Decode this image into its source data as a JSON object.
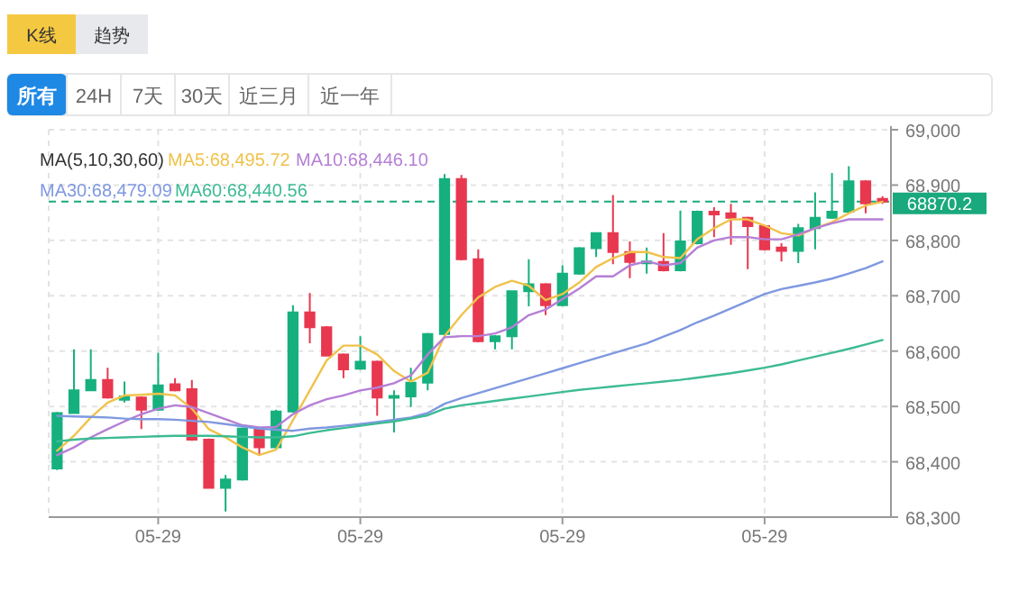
{
  "chart_data": {
    "type": "candlestick",
    "categories": [
      null,
      null,
      null,
      null,
      null,
      null,
      "05-29",
      null,
      null,
      null,
      null,
      null,
      null,
      null,
      null,
      null,
      null,
      null,
      "05-29",
      null,
      null,
      null,
      null,
      null,
      null,
      null,
      null,
      null,
      null,
      null,
      "05-29",
      null,
      null,
      null,
      null,
      null,
      null,
      null,
      null,
      null,
      null,
      null,
      "05-29",
      null,
      null,
      null,
      null,
      null,
      null,
      null
    ],
    "ohlc": [
      [
        68388,
        68490,
        68385,
        68488
      ],
      [
        68488,
        68603,
        68488,
        68529
      ],
      [
        68529,
        68603,
        68528,
        68548
      ],
      [
        68548,
        68570,
        68514,
        68516
      ],
      [
        68512,
        68545,
        68507,
        68518
      ],
      [
        68516,
        68518,
        68459,
        68494
      ],
      [
        68494,
        68597,
        68492,
        68538
      ],
      [
        68540,
        68551,
        68527,
        68529
      ],
      [
        68531,
        68548,
        68438,
        68440
      ],
      [
        68440,
        68442,
        68352,
        68353
      ],
      [
        68353,
        68376,
        68310,
        68368
      ],
      [
        68368,
        68462,
        68366,
        68460
      ],
      [
        68459,
        68462,
        68412,
        68426
      ],
      [
        68426,
        68494,
        68424,
        68491
      ],
      [
        68491,
        68683,
        68489,
        68670
      ],
      [
        68670,
        68705,
        68614,
        68643
      ],
      [
        68643,
        68645,
        68590,
        68592
      ],
      [
        68594,
        68596,
        68551,
        68567
      ],
      [
        68568,
        68627,
        68566,
        68581
      ],
      [
        68581,
        68583,
        68483,
        68516
      ],
      [
        68517,
        68529,
        68453,
        68519
      ],
      [
        68518,
        68570,
        68499,
        68543
      ],
      [
        68543,
        68633,
        68529,
        68631
      ],
      [
        68631,
        68920,
        68629,
        68911
      ],
      [
        68911,
        68918,
        68764,
        68766
      ],
      [
        68766,
        68784,
        68616,
        68618
      ],
      [
        68618,
        68629,
        68603,
        68627
      ],
      [
        68627,
        68710,
        68603,
        68708
      ],
      [
        68708,
        68766,
        68681,
        68721
      ],
      [
        68721,
        68723,
        68665,
        68683
      ],
      [
        68683,
        68755,
        68681,
        68740
      ],
      [
        68740,
        68788,
        68738,
        68786
      ],
      [
        68786,
        68815,
        68770,
        68813
      ],
      [
        68813,
        68882,
        68757,
        68779
      ],
      [
        68779,
        68798,
        68732,
        68761
      ],
      [
        68760,
        68787,
        68740,
        68762
      ],
      [
        68761,
        68813,
        68744,
        68746
      ],
      [
        68746,
        68854,
        68744,
        68798
      ],
      [
        68795,
        68854,
        68793,
        68852
      ],
      [
        68852,
        68860,
        68806,
        68847
      ],
      [
        68849,
        68866,
        68792,
        68841
      ],
      [
        68841,
        68843,
        68748,
        68826
      ],
      [
        68826,
        68828,
        68782,
        68784
      ],
      [
        68787,
        68795,
        68762,
        68781
      ],
      [
        68781,
        68830,
        68759,
        68822
      ],
      [
        68822,
        68887,
        68784,
        68841
      ],
      [
        68841,
        68922,
        68839,
        68852
      ],
      [
        68852,
        68934,
        68850,
        68907
      ],
      [
        68907,
        68909,
        68849,
        68867
      ],
      [
        68875,
        68880,
        68866,
        68870.2
      ]
    ],
    "colors": [
      "#16b07e",
      "#16b07e",
      "#16b07e",
      "#e8384f",
      "#16b07e",
      "#e8384f",
      "#16b07e",
      "#e8384f",
      "#e8384f",
      "#e8384f",
      "#16b07e",
      "#16b07e",
      "#e8384f",
      "#16b07e",
      "#16b07e",
      "#e8384f",
      "#e8384f",
      "#e8384f",
      "#16b07e",
      "#e8384f",
      "#16b07e",
      "#16b07e",
      "#16b07e",
      "#16b07e",
      "#e8384f",
      "#e8384f",
      "#16b07e",
      "#16b07e",
      "#16b07e",
      "#e8384f",
      "#16b07e",
      "#16b07e",
      "#16b07e",
      "#e8384f",
      "#e8384f",
      "#16b07e",
      "#e8384f",
      "#16b07e",
      "#16b07e",
      "#e8384f",
      "#e8384f",
      "#e8384f",
      "#e8384f",
      "#e8384f",
      "#16b07e",
      "#16b07e",
      "#16b07e",
      "#16b07e",
      "#e8384f",
      "#e8384f"
    ],
    "series": [
      {
        "type": "line",
        "name": "MA5:68,495.72",
        "color": "#f0c24a",
        "values": [
          68420,
          68447,
          68480,
          68507,
          68520,
          68521,
          68523,
          68520,
          68496,
          68459,
          68444,
          68426,
          68412,
          68422,
          68475,
          68529,
          68583,
          68610,
          68610,
          68594,
          68564,
          68545,
          68561,
          68627,
          68665,
          68697,
          68716,
          68727,
          68718,
          68692,
          68703,
          68724,
          68752,
          68768,
          68779,
          68779,
          68770,
          68768,
          68802,
          68822,
          68838,
          68838,
          68827,
          68813,
          68809,
          68822,
          68833,
          68849,
          68863,
          68870
        ]
      },
      {
        "type": "line",
        "name": "MA10:68,446.10",
        "color": "#b57fd6",
        "values": [
          68412,
          68426,
          68444,
          68459,
          68473,
          68486,
          68496,
          68502,
          68499,
          68488,
          68477,
          68466,
          68462,
          68463,
          68486,
          68502,
          68513,
          68520,
          68529,
          68534,
          68542,
          68556,
          68594,
          68625,
          68627,
          68627,
          68632,
          68643,
          68665,
          68675,
          68694,
          68713,
          68735,
          68735,
          68755,
          68762,
          68755,
          68759,
          68787,
          68800,
          68806,
          68806,
          68802,
          68802,
          68811,
          68822,
          68831,
          68838,
          68838,
          68838
        ]
      },
      {
        "type": "line",
        "name": "MA30:68,479.09",
        "color": "#7f98e0",
        "values": [
          68483,
          68482,
          68481,
          68480,
          68478,
          68477,
          68477,
          68476,
          68474,
          68472,
          68468,
          68464,
          68460,
          68458,
          68456,
          68460,
          68462,
          68465,
          68468,
          68472,
          68476,
          68480,
          68488,
          68505,
          68515,
          68524,
          68533,
          68542,
          68551,
          68560,
          68569,
          68578,
          68587,
          68596,
          68605,
          68614,
          68626,
          68638,
          68652,
          68664,
          68677,
          68690,
          68703,
          68712,
          68718,
          68724,
          68731,
          68740,
          68750,
          68762
        ]
      },
      {
        "type": "line",
        "name": "MA60:68,440.56",
        "color": "#3dbb94",
        "values": [
          68437,
          68440,
          68442,
          68443,
          68444,
          68445,
          68446,
          68447,
          68447,
          68447,
          68446,
          68445,
          68444,
          68444,
          68446,
          68452,
          68457,
          68461,
          68465,
          68469,
          68473,
          68478,
          68484,
          68496,
          68502,
          68506,
          68510,
          68514,
          68518,
          68522,
          68526,
          68530,
          68533,
          68536,
          68539,
          68542,
          68545,
          68548,
          68552,
          68556,
          68560,
          68565,
          68570,
          68576,
          68583,
          68590,
          68597,
          68604,
          68612,
          68620
        ]
      }
    ],
    "legend_title": "MA(5,10,30,60)",
    "legend": "top left",
    "ylim": [
      68300,
      69000
    ],
    "yticks": [
      {
        "value": 68300,
        "label": "68,300"
      },
      {
        "value": 68400,
        "label": "68,400"
      },
      {
        "value": 68500,
        "label": "68,500"
      },
      {
        "value": 68600,
        "label": "68,600"
      },
      {
        "value": 68700,
        "label": "68,700"
      },
      {
        "value": 68800,
        "label": "68,800"
      },
      {
        "value": 68900,
        "label": "68,900"
      },
      {
        "value": 69000,
        "label": "69,000"
      }
    ],
    "grid": true,
    "ref_lines": [
      {
        "axis": "y",
        "value": 68870.2,
        "label": "68870.2",
        "color": "#1aa97c",
        "line_style": "dashed"
      }
    ],
    "annotations": [
      "K线",
      "趋势",
      "所有",
      "24H",
      "7天",
      "30天",
      "近三月",
      "近一年"
    ]
  }
}
